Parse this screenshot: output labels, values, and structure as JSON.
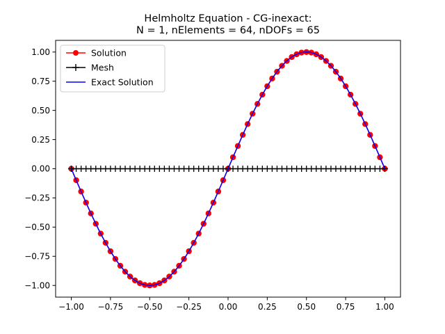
{
  "chart_data": {
    "type": "line",
    "title_lines": [
      "Helmholtz Equation - CG-inexact:",
      "N = 1,  nElements = 64,  nDOFs = 65"
    ],
    "xlabel": "",
    "ylabel": "",
    "xlim": [
      -1.1,
      1.1
    ],
    "ylim": [
      -1.1,
      1.1
    ],
    "xticks": [
      -1.0,
      -0.75,
      -0.5,
      -0.25,
      0.0,
      0.25,
      0.5,
      0.75,
      1.0
    ],
    "xtick_labels": [
      "−1.00",
      "−0.75",
      "−0.50",
      "−0.25",
      "0.00",
      "0.25",
      "0.50",
      "0.75",
      "1.00"
    ],
    "yticks": [
      1.0,
      0.75,
      0.5,
      0.25,
      0.0,
      -0.25,
      -0.5,
      -0.75,
      -1.0
    ],
    "ytick_labels": [
      "1.00",
      "0.75",
      "0.50",
      "0.25",
      "0.00",
      "−0.25",
      "−0.50",
      "−0.75",
      "−1.00"
    ],
    "grid": false,
    "legend_position": "top-left",
    "series": [
      {
        "name": "Solution",
        "color": "#ff0000",
        "marker": "circle",
        "function": "sin(pi*x)",
        "x_range": [
          -1.0,
          1.0
        ],
        "n_points": 65
      },
      {
        "name": "Mesh",
        "color": "#000000",
        "marker": "plus",
        "function": "0",
        "x_range": [
          -1.0,
          1.0
        ],
        "n_points": 65
      },
      {
        "name": "Exact Solution",
        "color": "#0000ff",
        "marker": "none",
        "function": "sin(pi*x)",
        "x_range": [
          -1.0,
          1.0
        ],
        "n_points": 201
      }
    ]
  }
}
